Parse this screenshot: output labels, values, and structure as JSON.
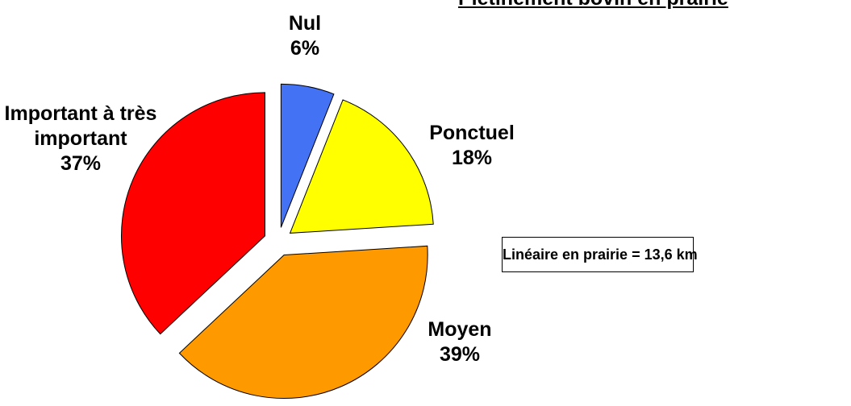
{
  "chart_data": {
    "type": "pie",
    "title": "Piétinement bovin en prairie",
    "categories": [
      "Nul",
      "Ponctuel",
      "Moyen",
      "Important à très important"
    ],
    "values": [
      6,
      18,
      39,
      37
    ],
    "value_labels": [
      "6%",
      "18%",
      "39%",
      "37%"
    ],
    "colors": [
      "#4472f4",
      "#ffff00",
      "#ff9900",
      "#ff0000"
    ],
    "annotation": "Linéaire en prairie = 13,6 km"
  }
}
